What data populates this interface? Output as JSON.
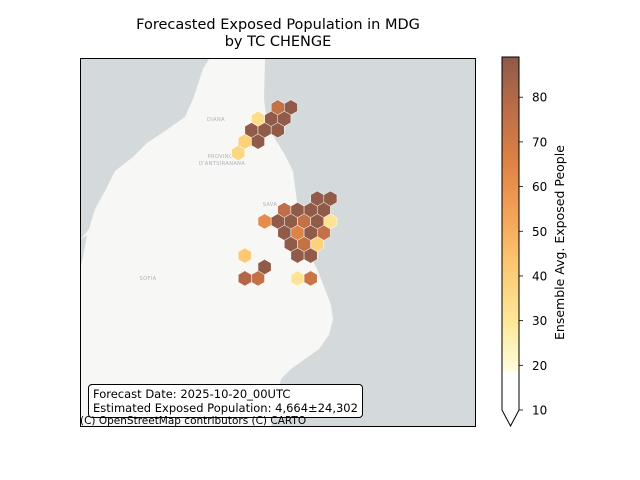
{
  "title": {
    "line1": "Forecasted Exposed Population in MDG",
    "line2": "by TC CHENGE"
  },
  "map": {
    "place_labels": [
      "DIANA",
      "PROVINCE",
      "D'ANTSIRANANA",
      "SAVA",
      "SOFIA"
    ],
    "attribution": "(C) OpenStreetMap contributors (C) CARTO",
    "colors": {
      "ocean": "#d4dadc",
      "land": "#f7f7f5"
    }
  },
  "info_box": {
    "forecast_date": "Forecast Date: 2025-10-20_00UTC",
    "estimated_exposed": "Estimated Exposed Population: 4,664±24,302"
  },
  "colorbar": {
    "label": "Ensemble Avg. Exposed People",
    "ticks": [
      "10",
      "20",
      "30",
      "40",
      "50",
      "60",
      "70",
      "80"
    ],
    "range": [
      10,
      89
    ],
    "extend": "min",
    "colormap": [
      "#fffdde",
      "#fde99a",
      "#fcc56e",
      "#f4a259",
      "#dd8145",
      "#b96b48",
      "#8d5a48"
    ]
  },
  "hexbins": [
    {
      "col": 1,
      "row": 1,
      "value": 72
    },
    {
      "col": 2,
      "row": 1,
      "value": 88
    },
    {
      "col": 1,
      "row": 2,
      "value": 88
    },
    {
      "col": 2,
      "row": 2,
      "value": 88
    },
    {
      "col": 0,
      "row": 2,
      "value": 28
    },
    {
      "col": -1,
      "row": 3,
      "value": 88
    },
    {
      "col": 0,
      "row": 3,
      "value": 88
    },
    {
      "col": 1,
      "row": 3,
      "value": 88
    },
    {
      "col": -1,
      "row": 4,
      "value": 32
    },
    {
      "col": 0,
      "row": 4,
      "value": 88
    },
    {
      "col": -2,
      "row": 5,
      "value": 30
    },
    {
      "col": 4,
      "row": 9,
      "value": 88
    },
    {
      "col": 5,
      "row": 9,
      "value": 88
    },
    {
      "col": 2,
      "row": 10,
      "value": 74
    },
    {
      "col": 3,
      "row": 10,
      "value": 88
    },
    {
      "col": 4,
      "row": 10,
      "value": 88
    },
    {
      "col": 5,
      "row": 10,
      "value": 88
    },
    {
      "col": 0,
      "row": 11,
      "value": 58
    },
    {
      "col": 1,
      "row": 11,
      "value": 88
    },
    {
      "col": 2,
      "row": 11,
      "value": 88
    },
    {
      "col": 3,
      "row": 11,
      "value": 72
    },
    {
      "col": 4,
      "row": 11,
      "value": 88
    },
    {
      "col": 5,
      "row": 11,
      "value": 25
    },
    {
      "col": 2,
      "row": 12,
      "value": 88
    },
    {
      "col": 3,
      "row": 12,
      "value": 62
    },
    {
      "col": 4,
      "row": 12,
      "value": 88
    },
    {
      "col": 5,
      "row": 12,
      "value": 72
    },
    {
      "col": 2,
      "row": 13,
      "value": 88
    },
    {
      "col": 3,
      "row": 13,
      "value": 72
    },
    {
      "col": 4,
      "row": 13,
      "value": 32
    },
    {
      "col": -1,
      "row": 14,
      "value": 35
    },
    {
      "col": 3,
      "row": 14,
      "value": 88
    },
    {
      "col": 4,
      "row": 14,
      "value": 88
    },
    {
      "col": 0,
      "row": 15,
      "value": 88
    },
    {
      "col": -1,
      "row": 16,
      "value": 78
    },
    {
      "col": 0,
      "row": 16,
      "value": 72
    },
    {
      "col": 3,
      "row": 16,
      "value": 25
    },
    {
      "col": 4,
      "row": 16,
      "value": 70
    }
  ]
}
